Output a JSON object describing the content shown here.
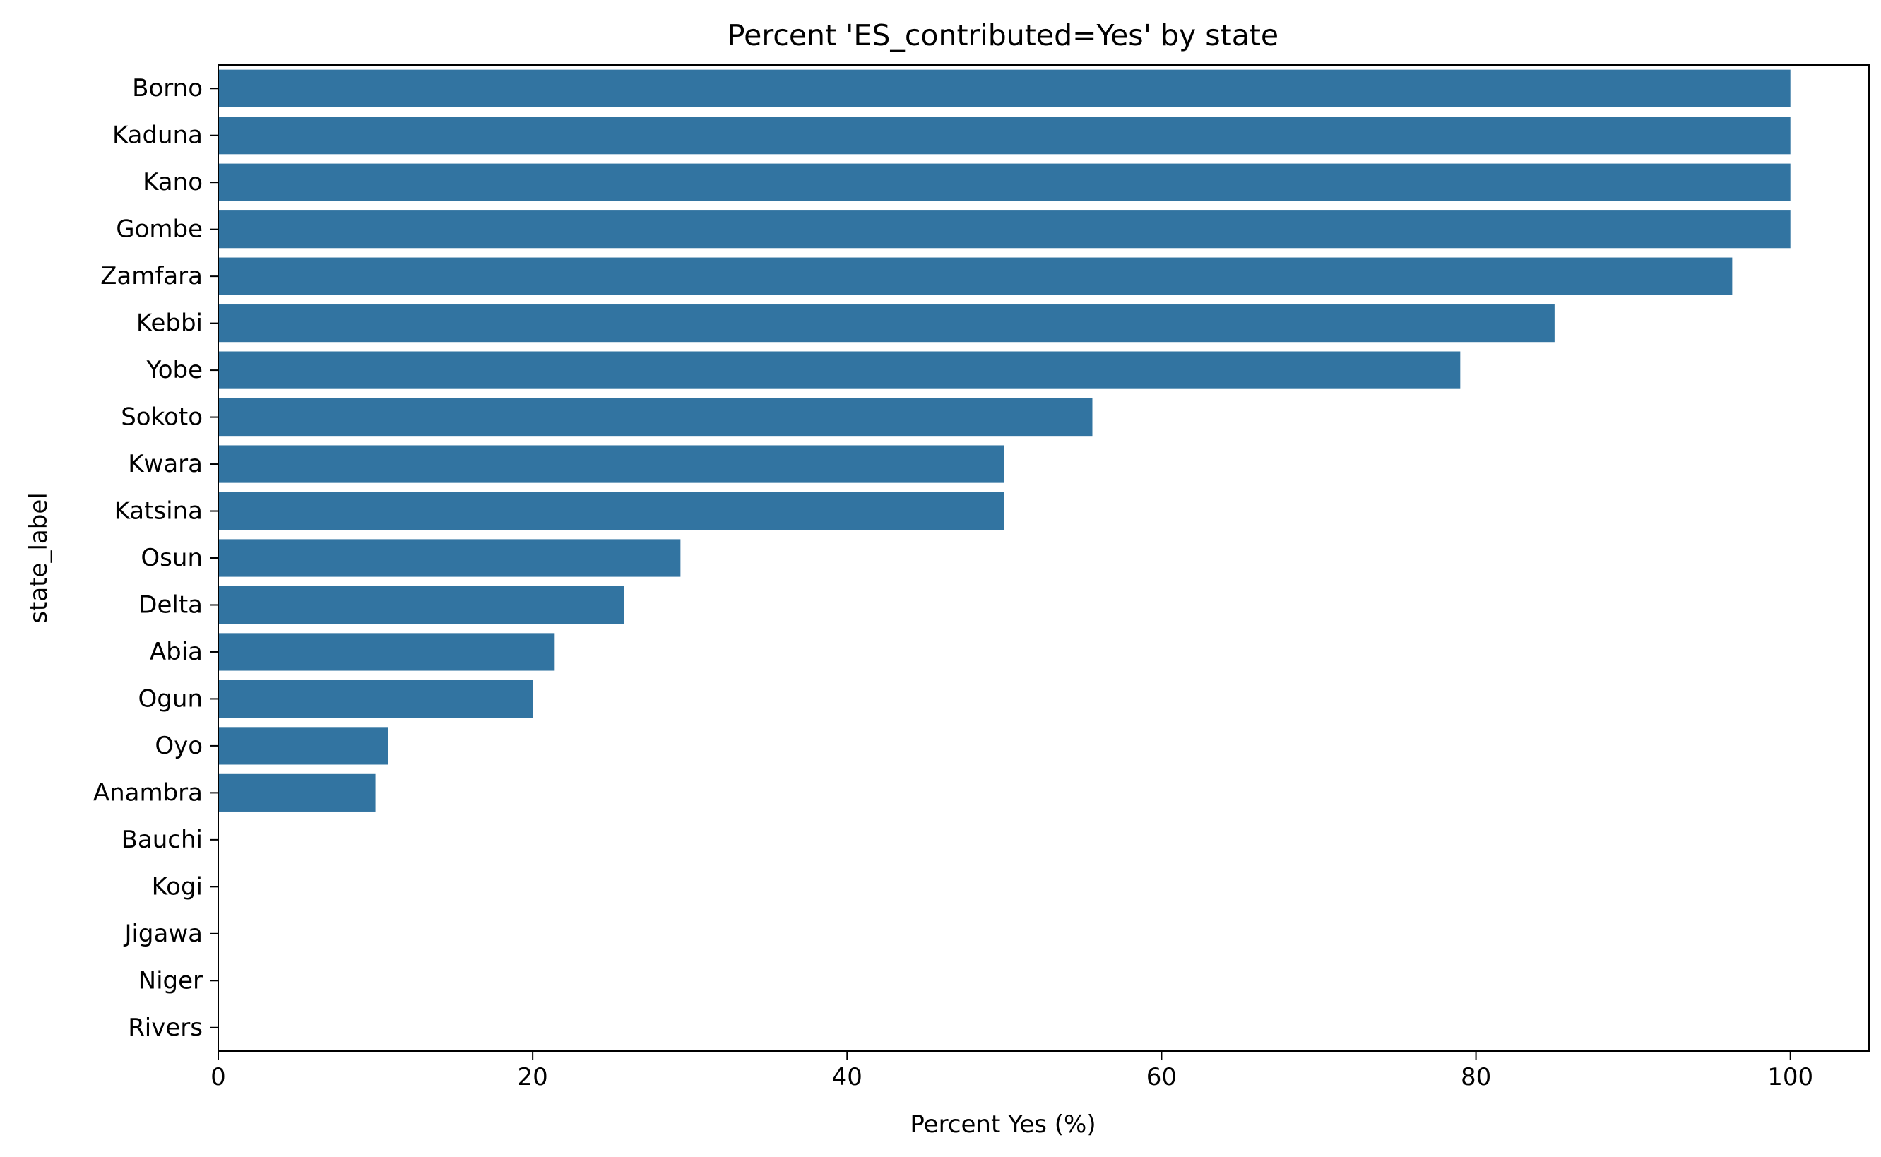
{
  "chart_data": {
    "type": "bar",
    "orientation": "horizontal",
    "title": "Percent 'ES_contributed=Yes' by state",
    "xlabel": "Percent Yes (%)",
    "ylabel": "state_label",
    "categories": [
      "Borno",
      "Kaduna",
      "Kano",
      "Gombe",
      "Zamfara",
      "Kebbi",
      "Yobe",
      "Sokoto",
      "Kwara",
      "Katsina",
      "Osun",
      "Delta",
      "Abia",
      "Ogun",
      "Oyo",
      "Anambra",
      "Bauchi",
      "Kogi",
      "Jigawa",
      "Niger",
      "Rivers"
    ],
    "values": [
      100,
      100,
      100,
      100,
      96.3,
      85,
      79,
      55.6,
      50,
      50,
      29.4,
      25.8,
      21.4,
      20,
      10.8,
      10,
      0,
      0,
      0,
      0,
      0
    ],
    "xlim": [
      0,
      105
    ],
    "xticks": [
      0,
      20,
      40,
      60,
      80,
      100
    ],
    "grid": false,
    "bar_color": "#3274a1"
  }
}
